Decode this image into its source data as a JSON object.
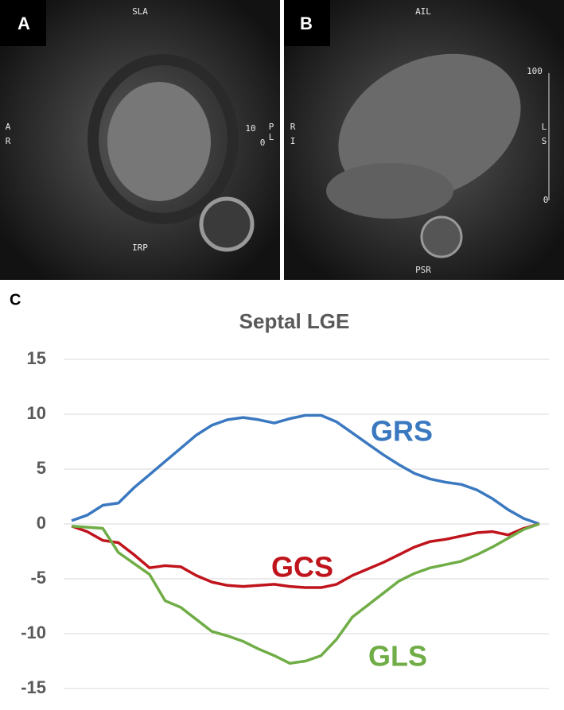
{
  "panels": [
    {
      "label": "A",
      "annotations": [
        "SLA",
        "A",
        "R",
        "10",
        "P",
        "L",
        "0",
        "IRP"
      ]
    },
    {
      "label": "B",
      "annotations": [
        "AIL",
        "R",
        "I",
        "100",
        "L",
        "S",
        "0",
        "PSR"
      ]
    }
  ],
  "chart_label": "C",
  "chart_data": {
    "type": "line",
    "title": "Septal LGE",
    "categories": [
      null,
      null,
      null,
      null,
      null,
      null,
      null,
      null,
      null,
      null,
      null,
      null,
      null,
      null,
      null,
      null,
      null,
      null,
      null,
      null,
      null,
      null,
      null,
      null,
      null,
      null,
      null,
      null,
      null,
      null,
      null
    ],
    "series": [
      {
        "name": "GRS",
        "color": "#3a78c0",
        "values": [
          0.3,
          0.8,
          1.7,
          1.9,
          3.3,
          4.5,
          5.7,
          6.9,
          8.1,
          9.0,
          9.5,
          9.7,
          9.5,
          9.2,
          9.6,
          9.9,
          9.9,
          9.3,
          8.3,
          7.3,
          6.3,
          5.4,
          4.6,
          4.1,
          3.8,
          3.6,
          3.1,
          2.3,
          1.3,
          0.5,
          0.0
        ]
      },
      {
        "name": "GCS",
        "color": "#c0141c",
        "values": [
          -0.2,
          -0.7,
          -1.5,
          -1.7,
          -2.8,
          -4.0,
          -3.8,
          -3.9,
          -4.7,
          -5.3,
          -5.6,
          -5.7,
          -5.6,
          -5.5,
          -5.7,
          -5.8,
          -5.8,
          -5.5,
          -4.7,
          -4.1,
          -3.5,
          -2.8,
          -2.1,
          -1.6,
          -1.4,
          -1.1,
          -0.8,
          -0.7,
          -1.0,
          -0.4,
          0.0
        ]
      },
      {
        "name": "GLS",
        "color": "#70ad47",
        "values": [
          -0.2,
          -0.3,
          -0.4,
          -2.6,
          -3.6,
          -4.6,
          -7.0,
          -7.6,
          -8.7,
          -9.8,
          -10.2,
          -10.7,
          -11.4,
          -12.0,
          -12.7,
          -12.5,
          -12.0,
          -10.5,
          -8.5,
          -7.4,
          -6.3,
          -5.2,
          -4.5,
          -4.0,
          -3.7,
          -3.4,
          -2.8,
          -2.1,
          -1.3,
          -0.5,
          0.0
        ]
      }
    ],
    "ylim": [
      -15,
      15
    ],
    "yticks": [
      -15,
      -10,
      -5,
      0,
      5,
      10,
      15
    ],
    "grid": true
  }
}
